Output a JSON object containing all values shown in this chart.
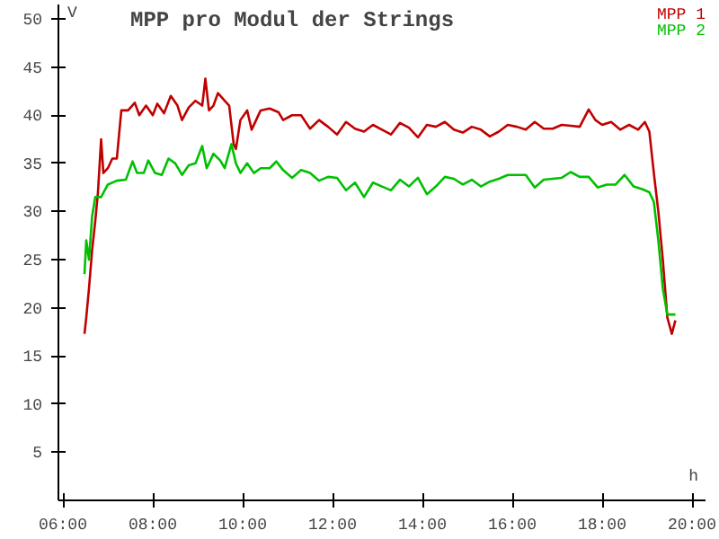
{
  "chart_data": {
    "type": "line",
    "title": "MPP pro Modul der Strings",
    "xlabel": "h",
    "ylabel": "V",
    "xlim": [
      5.9,
      20.3
    ],
    "ylim": [
      0,
      51.5
    ],
    "xticks": [
      {
        "value": 6,
        "label": "06:00"
      },
      {
        "value": 8,
        "label": "08:00"
      },
      {
        "value": 10,
        "label": "10:00"
      },
      {
        "value": 12,
        "label": "12:00"
      },
      {
        "value": 14,
        "label": "14:00"
      },
      {
        "value": 16,
        "label": "16:00"
      },
      {
        "value": 18,
        "label": "18:00"
      },
      {
        "value": 20,
        "label": "20:00"
      }
    ],
    "yticks": [
      5,
      10,
      15,
      20,
      25,
      30,
      35,
      40,
      45,
      50
    ],
    "grid": false,
    "marker": "none",
    "line_style": "solid",
    "series": [
      {
        "name": "MPP 1",
        "color": "#c00000",
        "x": [
          6.48,
          6.52,
          6.58,
          6.65,
          6.72,
          6.78,
          6.85,
          6.9,
          7.0,
          7.1,
          7.2,
          7.3,
          7.45,
          7.6,
          7.7,
          7.85,
          8.0,
          8.1,
          8.25,
          8.4,
          8.55,
          8.65,
          8.8,
          8.95,
          9.1,
          9.17,
          9.25,
          9.35,
          9.45,
          9.6,
          9.7,
          9.8,
          9.85,
          9.95,
          10.1,
          10.2,
          10.4,
          10.6,
          10.8,
          10.9,
          11.1,
          11.3,
          11.5,
          11.7,
          11.9,
          12.1,
          12.3,
          12.5,
          12.7,
          12.9,
          13.1,
          13.3,
          13.5,
          13.7,
          13.9,
          14.1,
          14.3,
          14.5,
          14.7,
          14.9,
          15.1,
          15.3,
          15.5,
          15.7,
          15.9,
          16.1,
          16.3,
          16.5,
          16.7,
          16.9,
          17.1,
          17.3,
          17.5,
          17.7,
          17.85,
          18.0,
          18.2,
          18.4,
          18.6,
          18.8,
          18.95,
          19.05,
          19.15,
          19.25,
          19.35,
          19.45,
          19.55,
          19.63
        ],
        "values": [
          17.3,
          19,
          22,
          26,
          29,
          32,
          37.5,
          34,
          34.5,
          35.5,
          35.5,
          40.5,
          40.5,
          41.3,
          40,
          41,
          40,
          41.2,
          40.2,
          42,
          41,
          39.5,
          40.8,
          41.5,
          41,
          43.8,
          40.5,
          41,
          42.3,
          41.5,
          41,
          37,
          36.5,
          39.5,
          40.5,
          38.5,
          40.5,
          40.7,
          40.3,
          39.5,
          40,
          40,
          38.6,
          39.5,
          38.8,
          38,
          39.3,
          38.6,
          38.3,
          39,
          38.5,
          38,
          39.2,
          38.7,
          37.7,
          39,
          38.8,
          39.3,
          38.5,
          38.2,
          38.8,
          38.5,
          37.8,
          38.3,
          39,
          38.8,
          38.5,
          39.3,
          38.6,
          38.6,
          39,
          38.9,
          38.8,
          40.6,
          39.5,
          39,
          39.3,
          38.5,
          39,
          38.5,
          39.3,
          38.3,
          34,
          30,
          25,
          19,
          17.3,
          18.7
        ]
      },
      {
        "name": "MPP 2",
        "color": "#00c000",
        "x": [
          6.48,
          6.52,
          6.58,
          6.65,
          6.72,
          6.85,
          7.0,
          7.2,
          7.4,
          7.55,
          7.65,
          7.8,
          7.9,
          8.05,
          8.2,
          8.35,
          8.5,
          8.65,
          8.8,
          8.95,
          9.1,
          9.2,
          9.35,
          9.5,
          9.6,
          9.75,
          9.85,
          9.95,
          10.1,
          10.25,
          10.4,
          10.6,
          10.75,
          10.9,
          11.1,
          11.3,
          11.5,
          11.7,
          11.9,
          12.1,
          12.3,
          12.5,
          12.7,
          12.9,
          13.1,
          13.3,
          13.5,
          13.7,
          13.9,
          14.1,
          14.3,
          14.5,
          14.7,
          14.9,
          15.1,
          15.3,
          15.5,
          15.7,
          15.9,
          16.1,
          16.3,
          16.5,
          16.7,
          16.9,
          17.1,
          17.3,
          17.5,
          17.7,
          17.9,
          18.1,
          18.3,
          18.5,
          18.7,
          18.9,
          19.05,
          19.15,
          19.25,
          19.35,
          19.45,
          19.63
        ],
        "values": [
          23.5,
          27,
          25,
          29.5,
          31.5,
          31.5,
          32.8,
          33.2,
          33.3,
          35.2,
          34,
          34,
          35.3,
          34,
          33.8,
          35.5,
          35,
          33.8,
          34.8,
          35,
          36.8,
          34.5,
          36,
          35.3,
          34.5,
          37,
          35,
          34,
          35,
          34,
          34.5,
          34.5,
          35.2,
          34.3,
          33.5,
          34.3,
          34,
          33.2,
          33.6,
          33.5,
          32.2,
          33,
          31.5,
          33,
          32.6,
          32.2,
          33.3,
          32.6,
          33.5,
          31.8,
          32.6,
          33.6,
          33.4,
          32.8,
          33.3,
          32.6,
          33.1,
          33.4,
          33.8,
          33.8,
          33.8,
          32.5,
          33.3,
          33.4,
          33.5,
          34.1,
          33.6,
          33.6,
          32.5,
          32.8,
          32.8,
          33.8,
          32.6,
          32.3,
          32,
          31,
          27,
          22,
          19.3,
          19.3
        ]
      }
    ]
  }
}
